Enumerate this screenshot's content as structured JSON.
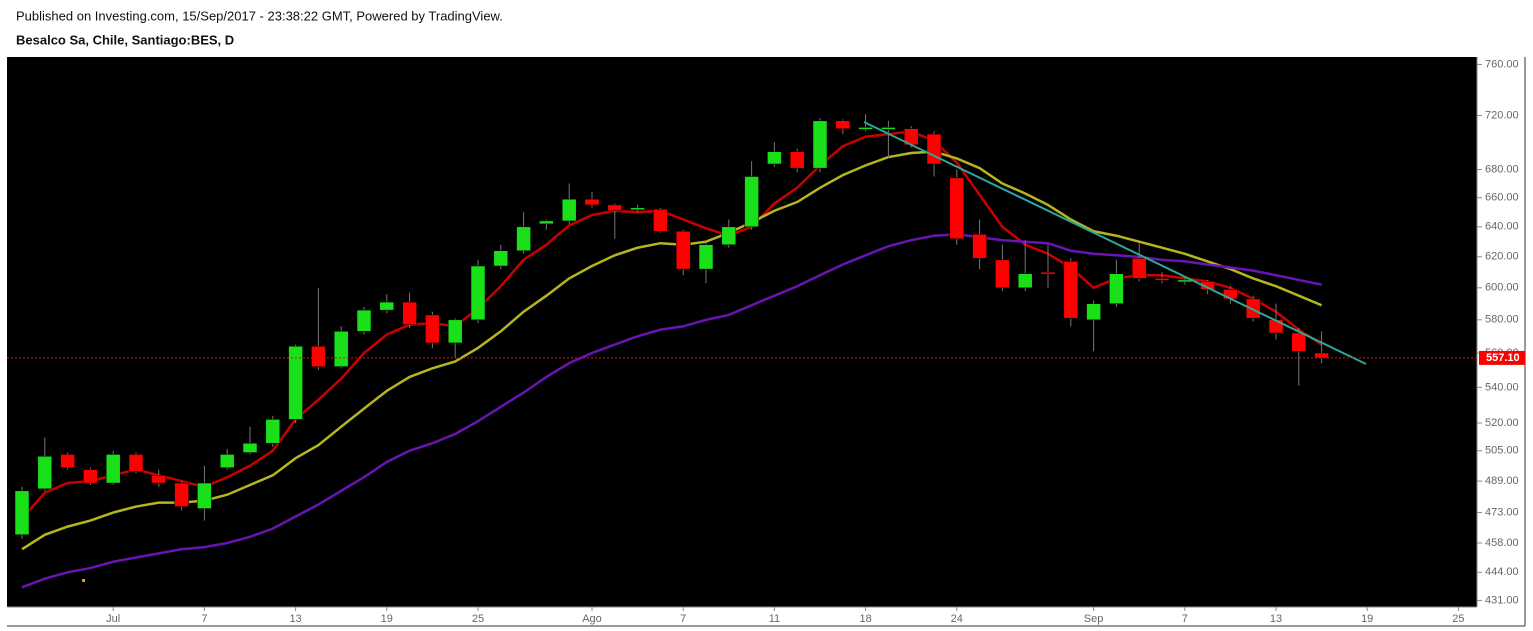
{
  "header": {
    "published": "Published on Investing.com, 15/Sep/2017 - 23:38:22 GMT, Powered by TradingView."
  },
  "chart_data": {
    "type": "candlestick",
    "title": "Besalco Sa, Chile, Santiago:BES, D",
    "categories": [
      null,
      null,
      null,
      null,
      "Jul",
      null,
      null,
      null,
      "7",
      null,
      null,
      null,
      "13",
      null,
      null,
      null,
      "19",
      null,
      null,
      null,
      "25",
      null,
      null,
      null,
      null,
      "Ago",
      null,
      null,
      null,
      "7",
      null,
      null,
      null,
      "11",
      null,
      null,
      null,
      "18",
      null,
      null,
      null,
      "24",
      null,
      null,
      null,
      null,
      null,
      "Sep",
      null,
      null,
      null,
      "7",
      null,
      null,
      null,
      "13",
      null,
      null,
      null,
      "19",
      null,
      null,
      null,
      "25"
    ],
    "open": [
      462,
      485,
      503,
      495,
      488,
      503,
      492,
      488,
      475,
      496,
      504,
      509,
      522,
      564,
      552,
      573,
      586,
      591,
      583,
      566,
      580,
      614,
      624,
      642,
      644,
      659,
      655,
      652,
      652,
      637,
      612,
      628,
      640,
      684,
      693,
      681,
      716,
      710,
      710,
      710,
      706,
      674,
      635,
      618,
      600,
      610,
      617,
      580,
      590,
      619,
      606,
      604,
      604,
      599,
      593,
      580,
      572,
      560,
      null,
      null,
      null,
      null,
      null,
      null
    ],
    "high": [
      486,
      512,
      504,
      496,
      505,
      504,
      495,
      489,
      497,
      506,
      518,
      524,
      565,
      600,
      576,
      588,
      596,
      597,
      585,
      581,
      618,
      628,
      650,
      645,
      670,
      664,
      656,
      655,
      653,
      638,
      630,
      645,
      686,
      700,
      695,
      718,
      717,
      721,
      716,
      712,
      708,
      680,
      645,
      628,
      631,
      628,
      619,
      592,
      618,
      629,
      610,
      607,
      605,
      601,
      595,
      590,
      575,
      573,
      null,
      null,
      null,
      null,
      null,
      null
    ],
    "low": [
      460,
      484,
      495,
      487,
      487,
      493,
      486,
      474,
      469,
      495,
      503,
      507,
      520,
      550,
      551,
      571,
      584,
      575,
      563,
      557,
      578,
      612,
      622,
      638,
      642,
      653,
      632,
      650,
      636,
      608,
      603,
      626,
      638,
      682,
      678,
      678,
      706,
      708,
      688,
      696,
      675,
      628,
      612,
      598,
      598,
      600,
      576,
      561,
      588,
      604,
      603,
      602,
      596,
      590,
      579,
      568,
      541,
      554,
      null,
      null,
      null,
      null,
      null,
      null
    ],
    "close": [
      484,
      502,
      496,
      488,
      503,
      494,
      488,
      476,
      488,
      503,
      509,
      522,
      564,
      552,
      573,
      586,
      591,
      577,
      566,
      580,
      614,
      624,
      640,
      644,
      659,
      655,
      651,
      653,
      637,
      612,
      628,
      640,
      675,
      693,
      681,
      716,
      710,
      711,
      711,
      698,
      684,
      632,
      619,
      600,
      609,
      609,
      581,
      590,
      609,
      606,
      605,
      605,
      599,
      593,
      581,
      572,
      561,
      557.1,
      null,
      null,
      null,
      null,
      null,
      null
    ],
    "up_color": "#19e019",
    "down_color": "#ff0000",
    "series": [
      {
        "color": "#c80000",
        "values": [
          470,
          483,
          488,
          489,
          492,
          495,
          492,
          489,
          486,
          491,
          497,
          505,
          522,
          533,
          545,
          560,
          571,
          577,
          578,
          576,
          587,
          601,
          618,
          628,
          641,
          648,
          651,
          650,
          651,
          645,
          639,
          634,
          640,
          656,
          667,
          683,
          697,
          704,
          706,
          708,
          701,
          685,
          662,
          640,
          628,
          622,
          613,
          600,
          606,
          608,
          608,
          606,
          604,
          600,
          593,
          585,
          574,
          565,
          null,
          null,
          null,
          null,
          null,
          null
        ]
      },
      {
        "color": "#b5b51e",
        "values": [
          455,
          462,
          466,
          469,
          473,
          476,
          478,
          478,
          479,
          482,
          487,
          492,
          501,
          508,
          518,
          528,
          538,
          546,
          551,
          555,
          563,
          573,
          585,
          595,
          606,
          614,
          621,
          626,
          629,
          628,
          630,
          636,
          643,
          651,
          657,
          667,
          676,
          683,
          689,
          692,
          693,
          688,
          681,
          670,
          663,
          655,
          645,
          637,
          634,
          630,
          626,
          622,
          617,
          612,
          606,
          601,
          595,
          589,
          null,
          null,
          null,
          null,
          null,
          null
        ]
      },
      {
        "color": "#6a14b4",
        "values": [
          437,
          441,
          444,
          446,
          449,
          451,
          453,
          455,
          456,
          458,
          461,
          465,
          471,
          477,
          484,
          491,
          499,
          505,
          509,
          514,
          521,
          529,
          537,
          546,
          554,
          560,
          565,
          570,
          574,
          576,
          580,
          583,
          589,
          595,
          601,
          608,
          615,
          621,
          627,
          631,
          634,
          635,
          633,
          631,
          630,
          629,
          624,
          622,
          621,
          620,
          618,
          617,
          615,
          613,
          611,
          608,
          605,
          602,
          null,
          null,
          null,
          null,
          null,
          null
        ]
      }
    ],
    "ylim": [
      428,
      766
    ],
    "log_scale": true,
    "grid": false,
    "yticks": [
      {
        "value": 431,
        "label": "431.00"
      },
      {
        "value": 444,
        "label": "444.00"
      },
      {
        "value": 458,
        "label": "458.00"
      },
      {
        "value": 473,
        "label": "473.00"
      },
      {
        "value": 489,
        "label": "489.00"
      },
      {
        "value": 505,
        "label": "505.00"
      },
      {
        "value": 520,
        "label": "520.00"
      },
      {
        "value": 540,
        "label": "540.00"
      },
      {
        "value": 560,
        "label": "560.00"
      },
      {
        "value": 580,
        "label": "580.00"
      },
      {
        "value": 600,
        "label": "600.00"
      },
      {
        "value": 620,
        "label": "620.00"
      },
      {
        "value": 640,
        "label": "640.00"
      },
      {
        "value": 660,
        "label": "660.00"
      },
      {
        "value": 680,
        "label": "680.00"
      },
      {
        "value": 720,
        "label": "720.00"
      },
      {
        "value": 760,
        "label": "760.00"
      }
    ],
    "last_price": {
      "value": 557.1,
      "label": "557.10",
      "color": "#ff0000"
    }
  }
}
